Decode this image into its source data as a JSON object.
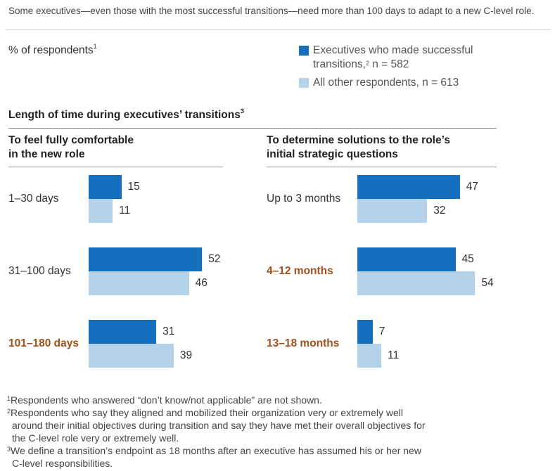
{
  "caption": "Some executives—even those with the most successful transitions—need more than 100 days to adapt to a new C-level role.",
  "unit_label": "% of respondents",
  "unit_sup": "1",
  "colors": {
    "successful": "#1470bf",
    "others": "#b4d2ea",
    "highlight": "#a3501c"
  },
  "legend": [
    {
      "line1": "Executives who made successful",
      "line2": "transitions,",
      "sup": "2",
      "line2b": " n = 582"
    },
    {
      "line1": "All other respondents, n = 613"
    }
  ],
  "section_title": "Length of time during executives’ transitions",
  "section_sup": "3",
  "chart_data": [
    {
      "type": "bar",
      "orientation": "horizontal",
      "title_lines": [
        "To feel fully comfortable",
        "in the new role"
      ],
      "categories": [
        "1–30 days",
        "31–100 days",
        "101–180 days"
      ],
      "highlighted": [
        false,
        false,
        true
      ],
      "series": [
        {
          "name": "Executives who made successful transitions, n = 582",
          "values": [
            15,
            52,
            31
          ]
        },
        {
          "name": "All other respondents, n = 613",
          "values": [
            11,
            46,
            39
          ]
        }
      ],
      "xlim": [
        0,
        100
      ],
      "grid": false
    },
    {
      "type": "bar",
      "orientation": "horizontal",
      "title_lines": [
        "To determine solutions to the role’s",
        "initial strategic questions"
      ],
      "categories": [
        "Up to 3 months",
        "4–12 months",
        "13–18 months"
      ],
      "highlighted": [
        false,
        true,
        true
      ],
      "series": [
        {
          "name": "Executives who made successful transitions, n = 582",
          "values": [
            47,
            45,
            7
          ]
        },
        {
          "name": "All other respondents, n = 613",
          "values": [
            32,
            54,
            11
          ]
        }
      ],
      "xlim": [
        0,
        100
      ],
      "grid": false
    }
  ],
  "footnotes": [
    {
      "sup": "1",
      "lines": [
        "Respondents who answered “don’t know/not applicable” are not shown."
      ]
    },
    {
      "sup": "2",
      "lines": [
        "Respondents who say they aligned and mobilized their organization very or extremely well",
        "around their initial objectives during transition and say they have met their overall objectives for",
        "the C-level role very or extremely well."
      ]
    },
    {
      "sup": "3",
      "lines": [
        "We define a transition’s endpoint as 18 months after an executive has assumed his or her new",
        "C-level responsibilities."
      ]
    }
  ]
}
